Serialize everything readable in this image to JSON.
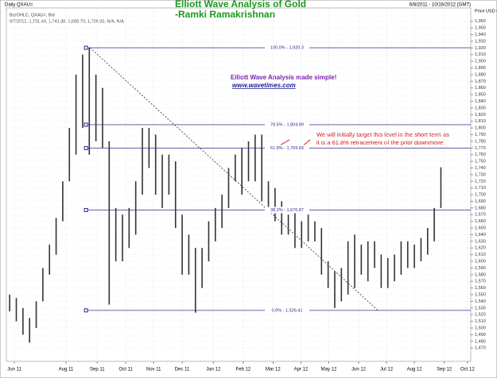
{
  "chart_data": {
    "type": "ohlc",
    "title": "Elliott Wave Analysis of Gold",
    "subtitle": "-Ramki Ramakrishnan",
    "symbol": "Daily QXAU=",
    "date_range": "6/8/2011 - 10/16/2012 (GMT)",
    "y_axis_label": "Price USD Ozs",
    "legend_line1": "BarOHLC, QXAU=, Bid",
    "legend_line2": "9/7/2012, 1,701.44, 1,741.30, 1,688.70, 1,736.00, N/A, N/A",
    "promo": "Elliott Wave Analysis made simple!",
    "link": "www.wavetimes.com",
    "note_lines": [
      "We will initially target this level in the short term as",
      "it is a 61.8% retracement of the prior downmove"
    ],
    "color": "#333333",
    "xlim": [
      0,
      70
    ],
    "xticks": [
      {
        "value": 1.2,
        "label": "Jun 11"
      },
      {
        "value": 9.0,
        "label": "Aug 11"
      },
      {
        "value": 13.7,
        "label": "Sep 11"
      },
      {
        "value": 18.0,
        "label": "Oct 11"
      },
      {
        "value": 22.2,
        "label": "Nov 11"
      },
      {
        "value": 26.5,
        "label": "Dec 11"
      },
      {
        "value": 31.2,
        "label": "Jan 12"
      },
      {
        "value": 35.7,
        "label": "Feb 12"
      },
      {
        "value": 40.2,
        "label": "Mar 12"
      },
      {
        "value": 44.4,
        "label": "Apr 12"
      },
      {
        "value": 48.6,
        "label": "May 12"
      },
      {
        "value": 53.1,
        "label": "Jun 12"
      },
      {
        "value": 57.3,
        "label": "Jul 12"
      },
      {
        "value": 61.5,
        "label": "Aug 12"
      },
      {
        "value": 66.0,
        "label": "Sep 12"
      },
      {
        "value": 69.5,
        "label": "Oct 12"
      }
    ],
    "ylim": [
      1450,
      1980
    ],
    "yticks": [
      {
        "value": 1470,
        "label": "1,470"
      },
      {
        "value": 1480,
        "label": "1,480"
      },
      {
        "value": 1490,
        "label": "1,490"
      },
      {
        "value": 1500,
        "label": "1,500"
      },
      {
        "value": 1510,
        "label": "1,510"
      },
      {
        "value": 1520,
        "label": "1,520"
      },
      {
        "value": 1530,
        "label": "1,530"
      },
      {
        "value": 1540,
        "label": "1,540"
      },
      {
        "value": 1550,
        "label": "1,550"
      },
      {
        "value": 1560,
        "label": "1,560"
      },
      {
        "value": 1570,
        "label": "1,570"
      },
      {
        "value": 1580,
        "label": "1,580"
      },
      {
        "value": 1590,
        "label": "1,590"
      },
      {
        "value": 1600,
        "label": "1,600"
      },
      {
        "value": 1610,
        "label": "1,610"
      },
      {
        "value": 1620,
        "label": "1,620"
      },
      {
        "value": 1630,
        "label": "1,630"
      },
      {
        "value": 1640,
        "label": "1,640"
      },
      {
        "value": 1650,
        "label": "1,650"
      },
      {
        "value": 1660,
        "label": "1,660"
      },
      {
        "value": 1670,
        "label": "1,670"
      },
      {
        "value": 1680,
        "label": "1,680"
      },
      {
        "value": 1690,
        "label": "1,690"
      },
      {
        "value": 1700,
        "label": "1,700"
      },
      {
        "value": 1710,
        "label": "1,710"
      },
      {
        "value": 1720,
        "label": "1,720"
      },
      {
        "value": 1730,
        "label": "1,730"
      },
      {
        "value": 1740,
        "label": "1,740"
      },
      {
        "value": 1750,
        "label": "1,750"
      },
      {
        "value": 1760,
        "label": "1,760"
      },
      {
        "value": 1770,
        "label": "1,770"
      },
      {
        "value": 1780,
        "label": "1,780"
      },
      {
        "value": 1790,
        "label": "1,790"
      },
      {
        "value": 1800,
        "label": "1,800"
      },
      {
        "value": 1810,
        "label": "1,810"
      },
      {
        "value": 1820,
        "label": "1,820"
      },
      {
        "value": 1830,
        "label": "1,830"
      },
      {
        "value": 1840,
        "label": "1,840"
      },
      {
        "value": 1850,
        "label": "1,850"
      },
      {
        "value": 1860,
        "label": "1,860"
      },
      {
        "value": 1870,
        "label": "1,870"
      },
      {
        "value": 1880,
        "label": "1,880"
      },
      {
        "value": 1890,
        "label": "1,890"
      },
      {
        "value": 1900,
        "label": "1,900"
      },
      {
        "value": 1910,
        "label": "1,910"
      },
      {
        "value": 1920,
        "label": "1,920"
      },
      {
        "value": 1930,
        "label": "1,930"
      },
      {
        "value": 1940,
        "label": "1,940"
      },
      {
        "value": 1950,
        "label": "1,950"
      },
      {
        "value": 1960,
        "label": "1,960"
      }
    ],
    "grid": true,
    "low": [
      1525,
      1510,
      1490,
      1478,
      1500,
      1540,
      1580,
      1610,
      1660,
      1720,
      1760,
      1800,
      1760,
      1780,
      1770,
      1535,
      1600,
      1600,
      1620,
      1640,
      1700,
      1740,
      1700,
      1680,
      1700,
      1650,
      1580,
      1580,
      1523,
      1560,
      1600,
      1630,
      1650,
      1680,
      1720,
      1700,
      1720,
      1720,
      1690,
      1680,
      1660,
      1640,
      1640,
      1620,
      1620,
      1630,
      1630,
      1580,
      1560,
      1530,
      1540,
      1550,
      1560,
      1580,
      1570,
      1590,
      1560,
      1560,
      1570,
      1580,
      1590,
      1590,
      1600,
      1610,
      1630,
      1680
    ],
    "high": [
      1550,
      1545,
      1530,
      1515,
      1540,
      1590,
      1625,
      1665,
      1720,
      1800,
      1880,
      1910,
      1920,
      1880,
      1860,
      1780,
      1680,
      1670,
      1680,
      1720,
      1800,
      1800,
      1790,
      1760,
      1760,
      1750,
      1670,
      1640,
      1620,
      1620,
      1660,
      1680,
      1700,
      1740,
      1760,
      1770,
      1780,
      1790,
      1790,
      1720,
      1710,
      1690,
      1670,
      1680,
      1660,
      1670,
      1660,
      1650,
      1600,
      1585,
      1590,
      1630,
      1640,
      1625,
      1630,
      1630,
      1610,
      1605,
      1610,
      1630,
      1630,
      1625,
      1635,
      1650,
      1680,
      1741
    ],
    "fib_color": "#2b2b8f",
    "fib_levels": [
      {
        "value": 1920.3,
        "label": "100.0% - 1,920.3"
      },
      {
        "value": 1804.89,
        "label": "78.6% - 1,804.89"
      },
      {
        "value": 1769.83,
        "label": "61.8% - 1,769.83"
      },
      {
        "value": 1676.87,
        "label": "38.2% - 1,676.87"
      },
      {
        "value": 1526.41,
        "label": "0.0% - 1,526.41"
      }
    ]
  }
}
